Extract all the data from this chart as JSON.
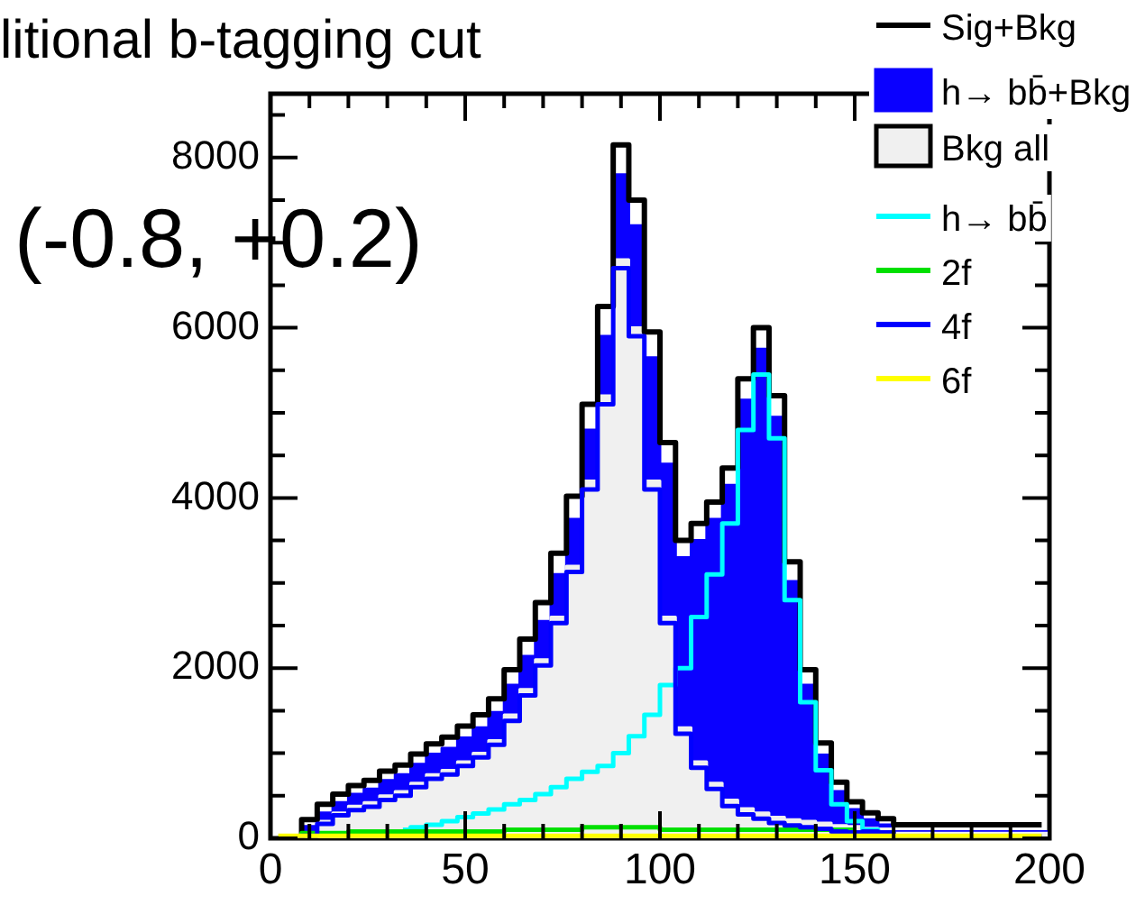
{
  "chart_data": {
    "type": "histogram",
    "title": "litional b-tagging cut",
    "annotations": [
      "(-0.8, +0.2)"
    ],
    "bins": [
      0,
      4,
      8,
      12,
      16,
      20,
      24,
      28,
      32,
      36,
      40,
      44,
      48,
      52,
      56,
      60,
      64,
      68,
      72,
      76,
      80,
      84,
      88,
      92,
      96,
      100,
      104,
      108,
      112,
      116,
      120,
      124,
      128,
      132,
      136,
      140,
      144,
      148,
      152,
      156,
      160,
      164,
      168,
      172,
      176,
      180,
      184,
      188,
      192,
      196,
      200
    ],
    "series": [
      {
        "name": "Sig+Bkg",
        "type": "step",
        "color": "#000000",
        "x": [
          2,
          6,
          10,
          14,
          18,
          22,
          26,
          30,
          34,
          38,
          42,
          46,
          50,
          54,
          58,
          62,
          66,
          70,
          74,
          78,
          82,
          86,
          90,
          94,
          98,
          102,
          106,
          110,
          114,
          118,
          122,
          126,
          130,
          134,
          138,
          142,
          146,
          150,
          154,
          158,
          162,
          166,
          170,
          174,
          178,
          182,
          186,
          190,
          194,
          198
        ],
        "values": [
          0,
          0,
          220,
          400,
          520,
          620,
          680,
          790,
          860,
          990,
          1110,
          1190,
          1320,
          1450,
          1640,
          1980,
          2340,
          2770,
          3350,
          4020,
          5100,
          6250,
          8150,
          7500,
          5950,
          4650,
          3500,
          3700,
          3950,
          4350,
          5400,
          6000,
          5200,
          3250,
          1980,
          1120,
          660,
          430,
          300,
          230,
          160,
          160,
          160,
          160,
          160,
          160,
          160,
          160,
          160,
          160
        ]
      },
      {
        "name": "h→ bb̄+Bkg",
        "color": "#0a00ff",
        "values": [
          0,
          0,
          140,
          300,
          420,
          520,
          580,
          680,
          750,
          870,
          990,
          1060,
          1180,
          1300,
          1480,
          1800,
          2140,
          2550,
          3100,
          3750,
          4800,
          5900,
          7800,
          7200,
          5650,
          4400,
          3300,
          3500,
          3750,
          4150,
          5150,
          5750,
          4950,
          3020,
          1800,
          980,
          550,
          340,
          220,
          160,
          80,
          80,
          80,
          80,
          80,
          80,
          80,
          80,
          80,
          80
        ]
      },
      {
        "name": "Bkg all",
        "color": "#f0f0f0",
        "values": [
          0,
          0,
          60,
          200,
          300,
          380,
          420,
          500,
          550,
          650,
          750,
          800,
          900,
          1000,
          1150,
          1450,
          1750,
          2100,
          2600,
          3200,
          4200,
          5200,
          6800,
          6000,
          4200,
          2600,
          1300,
          900,
          650,
          450,
          350,
          300,
          250,
          220,
          200,
          180,
          150,
          140,
          120,
          110,
          60,
          60,
          60,
          60,
          60,
          60,
          60,
          60,
          60,
          60
        ]
      },
      {
        "name": "h→ bb̄",
        "type": "step",
        "color": "#00ffff",
        "x": [
          34,
          38,
          42,
          46,
          50,
          54,
          58,
          62,
          66,
          70,
          74,
          78,
          82,
          86,
          90,
          94,
          98,
          102,
          106,
          110,
          114,
          118,
          122,
          126,
          130,
          134,
          138,
          142,
          146,
          150,
          154,
          158
        ],
        "values": [
          100,
          130,
          160,
          200,
          250,
          290,
          340,
          400,
          450,
          520,
          600,
          700,
          780,
          850,
          1000,
          1200,
          1450,
          1800,
          2000,
          2600,
          3100,
          3700,
          4800,
          5450,
          4700,
          2800,
          1600,
          800,
          400,
          200,
          100,
          50
        ]
      },
      {
        "name": "2f",
        "type": "step",
        "color": "#00e000",
        "x": [
          2,
          6,
          10,
          14,
          18,
          22,
          26,
          30,
          34,
          38,
          42,
          46,
          50,
          54,
          58,
          62,
          66,
          70,
          74,
          78,
          82,
          86,
          90,
          94,
          98,
          102,
          106,
          110,
          114,
          118,
          122,
          126,
          130,
          134,
          138,
          142,
          146,
          150
        ],
        "values": [
          0,
          0,
          60,
          60,
          60,
          80,
          80,
          80,
          80,
          80,
          80,
          80,
          80,
          80,
          80,
          100,
          100,
          100,
          100,
          100,
          130,
          130,
          130,
          130,
          130,
          100,
          100,
          100,
          100,
          100,
          100,
          100,
          100,
          100,
          100,
          100,
          100,
          100
        ]
      },
      {
        "name": "4f",
        "type": "step",
        "color": "#0000ff",
        "x": [
          2,
          6,
          10,
          14,
          18,
          22,
          26,
          30,
          34,
          38,
          42,
          46,
          50,
          54,
          58,
          62,
          66,
          70,
          74,
          78,
          82,
          86,
          90,
          94,
          98,
          102,
          106,
          110,
          114,
          118,
          122,
          126,
          130,
          134,
          138,
          142,
          146,
          150,
          154,
          158,
          162,
          166,
          170,
          174,
          178,
          182,
          186,
          190,
          194,
          198
        ],
        "values": [
          0,
          0,
          30,
          170,
          270,
          330,
          370,
          450,
          500,
          600,
          700,
          750,
          850,
          950,
          1100,
          1380,
          1680,
          2030,
          2530,
          3130,
          4100,
          5100,
          6700,
          5900,
          4100,
          2530,
          1230,
          830,
          580,
          380,
          280,
          230,
          180,
          150,
          130,
          110,
          80,
          70,
          80,
          70,
          20,
          20,
          20,
          20,
          20,
          20,
          20,
          20,
          20,
          20
        ]
      },
      {
        "name": "6f",
        "type": "step",
        "color": "#ffff00",
        "x": [
          2,
          6,
          10,
          14,
          18,
          22,
          26,
          30,
          34,
          38,
          42,
          46,
          50,
          54,
          58,
          62,
          66,
          70,
          74,
          78,
          82,
          86,
          90,
          94,
          98,
          102,
          106,
          110,
          114,
          118,
          122,
          126,
          130,
          134,
          138,
          142,
          146,
          150,
          154,
          158,
          162,
          166,
          170,
          174,
          178,
          182,
          186,
          190,
          194,
          198
        ],
        "values": [
          30,
          30,
          30,
          30,
          30,
          30,
          30,
          30,
          30,
          30,
          30,
          30,
          30,
          30,
          30,
          30,
          30,
          30,
          30,
          30,
          30,
          30,
          30,
          30,
          30,
          30,
          30,
          30,
          30,
          30,
          30,
          30,
          30,
          30,
          30,
          30,
          30,
          30,
          30,
          30,
          30,
          30,
          30,
          30,
          30,
          30,
          30,
          30,
          30,
          30
        ]
      }
    ],
    "xlim": [
      0,
      200
    ],
    "xticks": [
      0,
      {
        "value": 10,
        "label": null
      },
      {
        "value": 20,
        "label": null
      },
      {
        "value": 30,
        "label": null
      },
      {
        "value": 40,
        "label": null
      },
      50,
      {
        "value": 60,
        "label": null
      },
      {
        "value": 70,
        "label": null
      },
      {
        "value": 80,
        "label": null
      },
      {
        "value": 90,
        "label": null
      },
      100,
      {
        "value": 110,
        "label": null
      },
      {
        "value": 120,
        "label": null
      },
      {
        "value": 130,
        "label": null
      },
      {
        "value": 140,
        "label": null
      },
      150,
      {
        "value": 160,
        "label": null
      },
      {
        "value": 170,
        "label": null
      },
      {
        "value": 180,
        "label": null
      },
      {
        "value": 190,
        "label": null
      },
      200
    ],
    "ylim": [
      0,
      8750
    ],
    "yticks": [
      0,
      {
        "value": 500,
        "label": null
      },
      {
        "value": 1000,
        "label": null
      },
      {
        "value": 1500,
        "label": null
      },
      2000,
      {
        "value": 2500,
        "label": null
      },
      {
        "value": 3000,
        "label": null
      },
      {
        "value": 3500,
        "label": null
      },
      4000,
      {
        "value": 4500,
        "label": null
      },
      {
        "value": 5000,
        "label": null
      },
      {
        "value": 5500,
        "label": null
      },
      6000,
      {
        "value": 6500,
        "label": null
      },
      {
        "value": 7000,
        "label": null
      },
      {
        "value": 7500,
        "label": null
      },
      8000,
      {
        "value": 8500,
        "label": null
      }
    ],
    "legend": "top right"
  }
}
